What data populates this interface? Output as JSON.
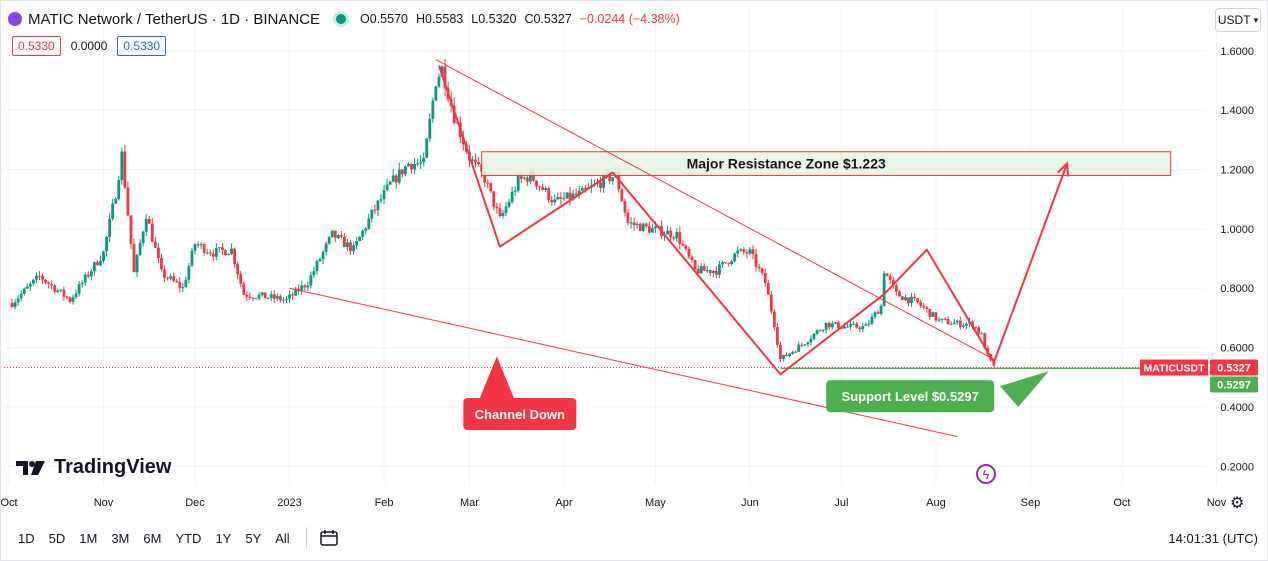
{
  "header": {
    "title": "MATIC Network / TetherUS · 1D · BINANCE",
    "open": "O0.5570",
    "high": "H0.5583",
    "low": "L0.5320",
    "close": "C0.5327",
    "change": "−0.0244 (−4.38%)",
    "ind1": "0.5330",
    "ind2": "0.0000",
    "ind3": "0.5330",
    "currency": "USDT"
  },
  "footer": {
    "ranges": [
      "1D",
      "5D",
      "1M",
      "3M",
      "6M",
      "YTD",
      "1Y",
      "5Y",
      "All"
    ],
    "time": "14:01:31 (UTC)",
    "logo": "TradingView"
  },
  "colors": {
    "up": "#089981",
    "down": "#f23645",
    "draw": "#f23645",
    "support": "#4caf50",
    "zone_fill": "#e8f3e1"
  },
  "icons": [
    "matic-icon",
    "live-dot-icon",
    "chevron-down-icon",
    "calendar-range-icon",
    "gear-icon",
    "bolt-icon",
    "tradingview-logo-icon"
  ],
  "chart_data": {
    "type": "candlestick",
    "symbol": "MATICUSDT",
    "ylim": [
      0.12,
      1.65
    ],
    "y_ticks": [
      "0.2000",
      "0.4000",
      "0.6000",
      "0.8000",
      "1.0000",
      "1.2000",
      "1.4000",
      "1.6000"
    ],
    "x_ticks": [
      "Oct",
      "Nov",
      "Dec",
      "2023",
      "Feb",
      "Mar",
      "Apr",
      "May",
      "Jun",
      "Jul",
      "Aug",
      "Sep",
      "Oct",
      "Nov"
    ],
    "price_line": {
      "label": "MATICUSDT",
      "value": "0.5327"
    },
    "support_tag": "0.5297",
    "annotations": {
      "resistance": "Major Resistance Zone $1.223",
      "channel": "Channel Down",
      "support": "Support Level $0.5297"
    },
    "resistance_zone": [
      1.18,
      1.26
    ],
    "support_level": 0.5297,
    "path": [
      [
        "2022-10-01",
        0.75
      ],
      [
        "2022-10-10",
        0.84
      ],
      [
        "2022-10-20",
        0.76
      ],
      [
        "2022-10-31",
        0.92
      ],
      [
        "2022-11-04",
        1.12
      ],
      [
        "2022-11-06",
        1.25
      ],
      [
        "2022-11-10",
        0.85
      ],
      [
        "2022-11-14",
        1.05
      ],
      [
        "2022-11-19",
        0.85
      ],
      [
        "2022-11-26",
        0.8
      ],
      [
        "2022-11-30",
        0.95
      ],
      [
        "2022-12-06",
        0.92
      ],
      [
        "2022-12-12",
        0.93
      ],
      [
        "2022-12-16",
        0.78
      ],
      [
        "2022-12-24",
        0.77
      ],
      [
        "2022-12-30",
        0.76
      ],
      [
        "2023-01-06",
        0.82
      ],
      [
        "2023-01-14",
        0.98
      ],
      [
        "2023-01-21",
        0.93
      ],
      [
        "2023-01-27",
        1.05
      ],
      [
        "2023-02-02",
        1.15
      ],
      [
        "2023-02-08",
        1.22
      ],
      [
        "2023-02-13",
        1.22
      ],
      [
        "2023-02-17",
        1.5
      ],
      [
        "2023-02-19",
        1.54
      ],
      [
        "2023-02-23",
        1.38
      ],
      [
        "2023-02-28",
        1.24
      ],
      [
        "2023-03-05",
        1.17
      ],
      [
        "2023-03-10",
        1.03
      ],
      [
        "2023-03-16",
        1.16
      ],
      [
        "2023-03-20",
        1.18
      ],
      [
        "2023-03-28",
        1.09
      ],
      [
        "2023-04-06",
        1.12
      ],
      [
        "2023-04-14",
        1.17
      ],
      [
        "2023-04-17",
        1.18
      ],
      [
        "2023-04-21",
        1.02
      ],
      [
        "2023-04-28",
        1.0
      ],
      [
        "2023-05-07",
        0.98
      ],
      [
        "2023-05-13",
        0.86
      ],
      [
        "2023-05-20",
        0.86
      ],
      [
        "2023-05-27",
        0.92
      ],
      [
        "2023-05-31",
        0.92
      ],
      [
        "2023-06-05",
        0.82
      ],
      [
        "2023-06-08",
        0.68
      ],
      [
        "2023-06-10",
        0.56
      ],
      [
        "2023-06-17",
        0.61
      ],
      [
        "2023-06-25",
        0.68
      ],
      [
        "2023-07-01",
        0.67
      ],
      [
        "2023-07-08",
        0.67
      ],
      [
        "2023-07-13",
        0.74
      ],
      [
        "2023-07-14",
        0.86
      ],
      [
        "2023-07-18",
        0.78
      ],
      [
        "2023-07-25",
        0.75
      ],
      [
        "2023-08-01",
        0.69
      ],
      [
        "2023-08-08",
        0.68
      ],
      [
        "2023-08-12",
        0.68
      ],
      [
        "2023-08-15",
        0.64
      ],
      [
        "2023-08-17",
        0.57
      ],
      [
        "2023-08-19",
        0.5327
      ]
    ],
    "drawings": {
      "channel_lines": [
        [
          [
            "2023-02-17",
            1.57
          ],
          [
            "2023-08-19",
            0.56
          ]
        ],
        [
          [
            "2022-12-31",
            0.8
          ],
          [
            "2023-08-07",
            0.3
          ]
        ]
      ],
      "zigzag": [
        [
          "2023-02-18",
          1.55
        ],
        [
          "2023-03-10",
          0.94
        ],
        [
          "2023-04-16",
          1.19
        ],
        [
          "2023-06-10",
          0.51
        ],
        [
          "2023-07-14",
          0.78
        ],
        [
          "2023-07-28",
          0.93
        ],
        [
          "2023-08-19",
          0.55
        ],
        [
          "2023-09-12",
          1.22
        ]
      ],
      "channel_pointer": [
        [
          "2023-03-03",
          0.42
        ],
        [
          "2023-03-09",
          0.57
        ],
        [
          "2023-03-15",
          0.42
        ]
      ],
      "support_pointer": [
        [
          "2023-08-21",
          0.47
        ],
        [
          "2023-09-06",
          0.52
        ],
        [
          "2023-08-21",
          0.47
        ]
      ]
    }
  }
}
